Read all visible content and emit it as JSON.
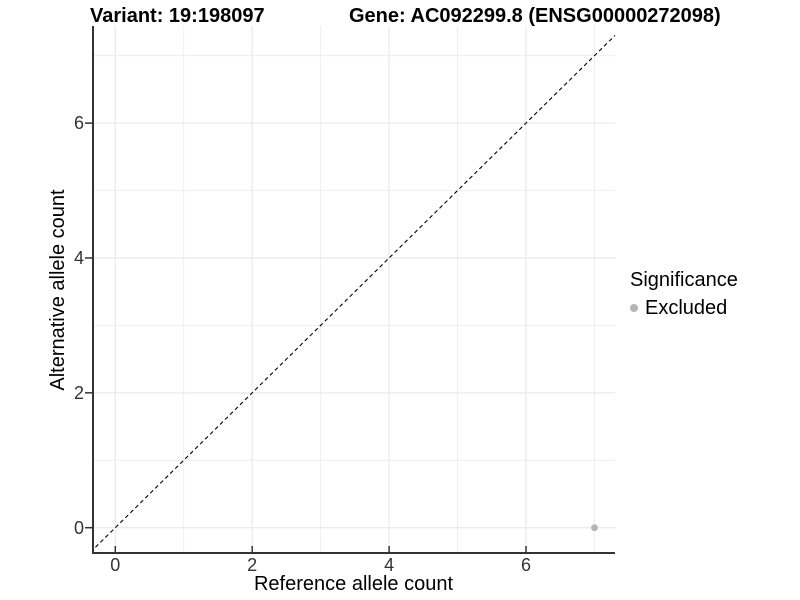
{
  "chart_data": {
    "type": "scatter",
    "title_variant": "Variant: 19:198097",
    "title_gene": "Gene: AC092299.8 (ENSG00000272098)",
    "xlabel": "Reference allele count",
    "ylabel": "Alternative allele count",
    "xlim": [
      -0.34,
      7.3
    ],
    "ylim": [
      -0.39,
      7.44
    ],
    "x_ticks": [
      0,
      2,
      4,
      6
    ],
    "y_ticks": [
      0,
      2,
      4,
      6
    ],
    "x_minor_ticks": [
      1,
      3,
      5,
      7
    ],
    "y_minor_ticks": [
      1,
      3,
      5,
      7
    ],
    "grid": "major+minor, white panel background",
    "reference_line": {
      "type": "identity",
      "equation": "y = x",
      "style": "dashed",
      "color": "#000000"
    },
    "series": [
      {
        "name": "Excluded",
        "color": "#b5b5b5",
        "points": [
          [
            7,
            0
          ]
        ]
      }
    ],
    "legend": {
      "title": "Significance",
      "position": "right",
      "entries": [
        {
          "label": "Excluded",
          "color": "#b5b5b5"
        }
      ]
    },
    "colors": {
      "grid": "#ebebeb",
      "axis": "#333333",
      "tick_text": "#333333",
      "text": "#000000",
      "background": "#ffffff"
    }
  }
}
